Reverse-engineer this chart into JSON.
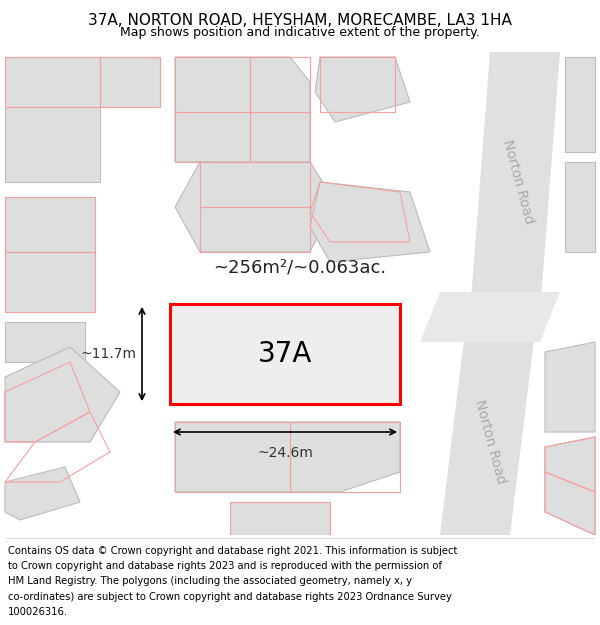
{
  "title": "37A, NORTON ROAD, HEYSHAM, MORECAMBE, LA3 1HA",
  "subtitle": "Map shows position and indicative extent of the property.",
  "area_label": "~256m²/~0.063ac.",
  "width_label": "~24.6m",
  "height_label": "~11.7m",
  "plot_label": "37A",
  "road_label_upper": "Norton Road",
  "road_label_lower": "Norton Road",
  "highlight_color": "#ff0000",
  "map_bg": "#f5f5f5",
  "building_fill": "#dedede",
  "building_edge": "#bbbbbb",
  "road_fill": "#e8e8e8",
  "red_line_color": "#f5a0a0",
  "title_fontsize": 11,
  "subtitle_fontsize": 9,
  "footer_lines": [
    "Contains OS data © Crown copyright and database right 2021. This information is subject",
    "to Crown copyright and database rights 2023 and is reproduced with the permission of",
    "HM Land Registry. The polygons (including the associated geometry, namely x, y",
    "co-ordinates) are subject to Crown copyright and database rights 2023 Ordnance Survey",
    "100026316."
  ]
}
